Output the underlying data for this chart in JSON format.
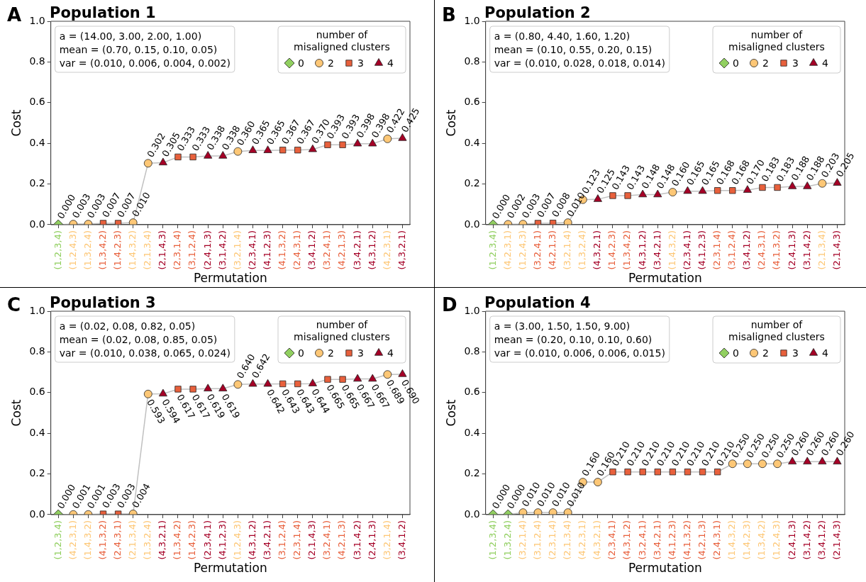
{
  "chart_data": [
    {
      "type": "scatter",
      "title": "Population 1",
      "xlabel": "Permutation",
      "ylabel": "Cost",
      "legend_title": "number of misaligned clusters",
      "legend": "top right",
      "grid": false,
      "annotations": [
        "A",
        "a = (14.00, 3.00, 2.00, 1.00)",
        "mean = (0.70, 0.15, 0.10, 0.05)",
        "var = (0.010, 0.006, 0.004, 0.002)"
      ],
      "categories": [
        "(1,2,3,4)",
        "(1,2,4,3)",
        "(1,3,2,4)",
        "(1,3,4,2)",
        "(1,4,2,3)",
        "(1,4,3,2)",
        "(2,1,3,4)",
        "(2,1,4,3)",
        "(2,3,1,4)",
        "(3,1,2,4)",
        "(2,4,1,3)",
        "(3,1,4,2)",
        "(3,2,1,4)",
        "(2,3,4,1)",
        "(4,1,2,3)",
        "(4,1,3,2)",
        "(2,4,3,1)",
        "(3,4,1,2)",
        "(3,2,4,1)",
        "(4,2,1,3)",
        "(3,4,2,1)",
        "(4,3,1,2)",
        "(4,2,3,1)",
        "(4,3,2,1)"
      ],
      "ylim": [
        0,
        1
      ],
      "yticks": [
        {
          "value": 0,
          "label": "0.0"
        },
        {
          "value": 0.2,
          "label": "0.2"
        },
        {
          "value": 0.4,
          "label": "0.4"
        },
        {
          "value": 0.6,
          "label": "0.6"
        },
        {
          "value": 0.8,
          "label": "0.8"
        },
        {
          "value": 1,
          "label": "1.0"
        }
      ],
      "series": [
        {
          "type": "line",
          "color": "#c0c0c0",
          "marker": "none",
          "values": [
            0,
            0.003,
            0.003,
            0.007,
            0.007,
            0.01,
            0.302,
            0.305,
            0.333,
            0.333,
            0.338,
            0.338,
            0.36,
            0.365,
            0.365,
            0.367,
            0.367,
            0.37,
            0.393,
            0.393,
            0.398,
            0.398,
            0.422,
            0.425
          ]
        },
        {
          "name": "0",
          "type": "scatter",
          "marker": "diamond",
          "color": "#91cf60",
          "values": [
            0,
            null,
            null,
            null,
            null,
            null,
            null,
            null,
            null,
            null,
            null,
            null,
            null,
            null,
            null,
            null,
            null,
            null,
            null,
            null,
            null,
            null,
            null,
            null
          ],
          "value_labels": [
            "0.000",
            null,
            null,
            null,
            null,
            null,
            null,
            null,
            null,
            null,
            null,
            null,
            null,
            null,
            null,
            null,
            null,
            null,
            null,
            null,
            null,
            null,
            null,
            null
          ]
        },
        {
          "name": "2",
          "type": "scatter",
          "marker": "circle",
          "color": "#fdc776",
          "values": [
            null,
            0.003,
            0.003,
            null,
            null,
            0.01,
            0.302,
            null,
            null,
            null,
            null,
            null,
            0.36,
            null,
            null,
            null,
            null,
            null,
            null,
            null,
            null,
            null,
            0.422,
            null
          ],
          "value_labels": [
            null,
            "0.003",
            "0.003",
            null,
            null,
            "0.010",
            "0.302",
            null,
            null,
            null,
            null,
            null,
            "0.360",
            null,
            null,
            null,
            null,
            null,
            null,
            null,
            null,
            null,
            "0.422",
            null
          ]
        },
        {
          "name": "3",
          "type": "scatter",
          "marker": "square",
          "color": "#e8603c",
          "values": [
            null,
            null,
            null,
            0.007,
            0.007,
            null,
            null,
            null,
            0.333,
            0.333,
            null,
            null,
            null,
            null,
            null,
            0.367,
            0.367,
            null,
            0.393,
            0.393,
            null,
            null,
            null,
            null
          ],
          "value_labels": [
            null,
            null,
            null,
            "0.007",
            "0.007",
            null,
            null,
            null,
            "0.333",
            "0.333",
            null,
            null,
            null,
            null,
            null,
            "0.367",
            "0.367",
            null,
            "0.393",
            "0.393",
            null,
            null,
            null,
            null
          ]
        },
        {
          "name": "4",
          "type": "scatter",
          "marker": "triangle",
          "color": "#a50026",
          "values": [
            null,
            null,
            null,
            null,
            null,
            null,
            null,
            0.305,
            null,
            null,
            0.338,
            0.338,
            null,
            0.365,
            0.365,
            null,
            null,
            0.37,
            null,
            null,
            0.398,
            0.398,
            null,
            0.425
          ],
          "value_labels": [
            null,
            null,
            null,
            null,
            null,
            null,
            null,
            "0.305",
            null,
            null,
            "0.338",
            "0.338",
            null,
            "0.365",
            "0.365",
            null,
            null,
            "0.370",
            null,
            null,
            "0.398",
            "0.398",
            null,
            "0.425"
          ]
        }
      ]
    },
    {
      "type": "scatter",
      "title": "Population 2",
      "xlabel": "Permutation",
      "ylabel": "Cost",
      "legend_title": "number of misaligned clusters",
      "legend": "top right",
      "grid": false,
      "annotations": [
        "B",
        "a = (0.80, 4.40, 1.60, 1.20)",
        "mean = (0.10, 0.55, 0.20, 0.15)",
        "var = (0.010, 0.028, 0.018, 0.014)"
      ],
      "categories": [
        "(1,2,3,4)",
        "(4,2,3,1)",
        "(1,2,4,3)",
        "(3,2,4,1)",
        "(4,2,1,3)",
        "(3,2,1,4)",
        "(1,3,2,4)",
        "(4,3,2,1)",
        "(1,4,2,3)",
        "(1,3,4,2)",
        "(4,3,1,2)",
        "(3,4,2,1)",
        "(1,4,3,2)",
        "(2,3,4,1)",
        "(4,1,2,3)",
        "(2,3,1,4)",
        "(3,1,2,4)",
        "(3,4,1,2)",
        "(2,4,3,1)",
        "(4,1,3,2)",
        "(2,4,1,3)",
        "(3,1,4,2)",
        "(2,1,3,4)",
        "(2,1,4,3)"
      ],
      "ylim": [
        0,
        1
      ],
      "yticks": [
        {
          "value": 0,
          "label": "0.0"
        },
        {
          "value": 0.2,
          "label": "0.2"
        },
        {
          "value": 0.4,
          "label": "0.4"
        },
        {
          "value": 0.6,
          "label": "0.6"
        },
        {
          "value": 0.8,
          "label": "0.8"
        },
        {
          "value": 1,
          "label": "1.0"
        }
      ],
      "series": [
        {
          "type": "line",
          "color": "#c0c0c0",
          "marker": "none",
          "values": [
            0,
            0.002,
            0.003,
            0.007,
            0.008,
            0.01,
            0.123,
            0.125,
            0.143,
            0.143,
            0.148,
            0.148,
            0.16,
            0.165,
            0.165,
            0.168,
            0.168,
            0.17,
            0.183,
            0.183,
            0.188,
            0.188,
            0.203,
            0.205
          ]
        },
        {
          "name": "0",
          "type": "scatter",
          "marker": "diamond",
          "color": "#91cf60",
          "values": [
            0,
            null,
            null,
            null,
            null,
            null,
            null,
            null,
            null,
            null,
            null,
            null,
            null,
            null,
            null,
            null,
            null,
            null,
            null,
            null,
            null,
            null,
            null,
            null
          ],
          "value_labels": [
            "0.000",
            null,
            null,
            null,
            null,
            null,
            null,
            null,
            null,
            null,
            null,
            null,
            null,
            null,
            null,
            null,
            null,
            null,
            null,
            null,
            null,
            null,
            null,
            null
          ]
        },
        {
          "name": "2",
          "type": "scatter",
          "marker": "circle",
          "color": "#fdc776",
          "values": [
            null,
            0.002,
            0.003,
            null,
            null,
            0.01,
            0.123,
            null,
            null,
            null,
            null,
            null,
            0.16,
            null,
            null,
            null,
            null,
            null,
            null,
            null,
            null,
            null,
            0.203,
            null
          ],
          "value_labels": [
            null,
            "0.002",
            "0.003",
            null,
            null,
            "0.010",
            "0.123",
            null,
            null,
            null,
            null,
            null,
            "0.160",
            null,
            null,
            null,
            null,
            null,
            null,
            null,
            null,
            null,
            "0.203",
            null
          ]
        },
        {
          "name": "3",
          "type": "scatter",
          "marker": "square",
          "color": "#e8603c",
          "values": [
            null,
            null,
            null,
            0.007,
            0.008,
            null,
            null,
            null,
            0.143,
            0.143,
            null,
            null,
            null,
            null,
            null,
            0.168,
            0.168,
            null,
            0.183,
            0.183,
            null,
            null,
            null,
            null
          ],
          "value_labels": [
            null,
            null,
            null,
            "0.007",
            "0.008",
            null,
            null,
            null,
            "0.143",
            "0.143",
            null,
            null,
            null,
            null,
            null,
            "0.168",
            "0.168",
            null,
            "0.183",
            "0.183",
            null,
            null,
            null,
            null
          ]
        },
        {
          "name": "4",
          "type": "scatter",
          "marker": "triangle",
          "color": "#a50026",
          "values": [
            null,
            null,
            null,
            null,
            null,
            null,
            null,
            0.125,
            null,
            null,
            0.148,
            0.148,
            null,
            0.165,
            0.165,
            null,
            null,
            0.17,
            null,
            null,
            0.188,
            0.188,
            null,
            0.205
          ],
          "value_labels": [
            null,
            null,
            null,
            null,
            null,
            null,
            null,
            "0.125",
            null,
            null,
            "0.148",
            "0.148",
            null,
            "0.165",
            "0.165",
            null,
            null,
            "0.170",
            null,
            null,
            "0.188",
            "0.188",
            null,
            "0.205"
          ]
        }
      ]
    },
    {
      "type": "scatter",
      "title": "Population 3",
      "xlabel": "Permutation",
      "ylabel": "Cost",
      "legend_title": "number of misaligned clusters",
      "legend": "top right",
      "grid": false,
      "annotations": [
        "C",
        "a = (0.02, 0.08, 0.82, 0.05)",
        "mean = (0.02, 0.08, 0.85, 0.05)",
        "var = (0.010, 0.038, 0.065, 0.024)"
      ],
      "categories": [
        "(1,2,3,4)",
        "(4,2,3,1)",
        "(1,4,3,2)",
        "(4,1,3,2)",
        "(2,4,3,1)",
        "(2,1,3,4)",
        "(1,3,2,4)",
        "(4,3,2,1)",
        "(1,3,4,2)",
        "(1,4,2,3)",
        "(2,3,4,1)",
        "(4,1,2,3)",
        "(1,2,4,3)",
        "(4,3,1,2)",
        "(3,4,2,1)",
        "(3,1,2,4)",
        "(2,3,1,4)",
        "(2,1,4,3)",
        "(3,2,4,1)",
        "(4,2,1,3)",
        "(3,1,4,2)",
        "(2,4,1,3)",
        "(3,2,1,4)",
        "(3,4,1,2)"
      ],
      "ylim": [
        0,
        1
      ],
      "yticks": [
        {
          "value": 0,
          "label": "0.0"
        },
        {
          "value": 0.2,
          "label": "0.2"
        },
        {
          "value": 0.4,
          "label": "0.4"
        },
        {
          "value": 0.6,
          "label": "0.6"
        },
        {
          "value": 0.8,
          "label": "0.8"
        },
        {
          "value": 1,
          "label": "1.0"
        }
      ],
      "series": [
        {
          "type": "line",
          "color": "#c0c0c0",
          "marker": "none",
          "values": [
            0,
            0.001,
            0.001,
            0.003,
            0.003,
            0.004,
            0.593,
            0.594,
            0.617,
            0.617,
            0.619,
            0.619,
            0.64,
            0.642,
            0.642,
            0.643,
            0.643,
            0.644,
            0.665,
            0.665,
            0.667,
            0.667,
            0.689,
            0.69
          ]
        },
        {
          "name": "0",
          "type": "scatter",
          "marker": "diamond",
          "color": "#91cf60",
          "values": [
            0,
            null,
            null,
            null,
            null,
            null,
            null,
            null,
            null,
            null,
            null,
            null,
            null,
            null,
            null,
            null,
            null,
            null,
            null,
            null,
            null,
            null,
            null,
            null
          ],
          "value_labels": [
            "0.000",
            null,
            null,
            null,
            null,
            null,
            null,
            null,
            null,
            null,
            null,
            null,
            null,
            null,
            null,
            null,
            null,
            null,
            null,
            null,
            null,
            null,
            null,
            null
          ]
        },
        {
          "name": "2",
          "type": "scatter",
          "marker": "circle",
          "color": "#fdc776",
          "values": [
            null,
            0.001,
            0.001,
            null,
            null,
            0.004,
            0.593,
            null,
            null,
            null,
            null,
            null,
            0.64,
            null,
            null,
            null,
            null,
            null,
            null,
            null,
            null,
            null,
            0.689,
            null
          ],
          "value_labels": [
            null,
            "0.001",
            "0.001",
            null,
            null,
            "0.004",
            "0.593",
            null,
            null,
            null,
            null,
            null,
            "0.640",
            null,
            null,
            null,
            null,
            null,
            null,
            null,
            null,
            null,
            "0.689",
            null
          ]
        },
        {
          "name": "3",
          "type": "scatter",
          "marker": "square",
          "color": "#e8603c",
          "values": [
            null,
            null,
            null,
            0.003,
            0.003,
            null,
            null,
            null,
            0.617,
            0.617,
            null,
            null,
            null,
            null,
            null,
            0.643,
            0.643,
            null,
            0.665,
            0.665,
            null,
            null,
            null,
            null
          ],
          "value_labels": [
            null,
            null,
            null,
            "0.003",
            "0.003",
            null,
            null,
            null,
            "0.617",
            "0.617",
            null,
            null,
            null,
            null,
            null,
            "0.643",
            "0.643",
            null,
            "0.665",
            "0.665",
            null,
            null,
            null,
            null
          ]
        },
        {
          "name": "4",
          "type": "scatter",
          "marker": "triangle",
          "color": "#a50026",
          "values": [
            null,
            null,
            null,
            null,
            null,
            null,
            null,
            0.594,
            null,
            null,
            0.619,
            0.619,
            null,
            0.642,
            0.642,
            null,
            null,
            0.644,
            null,
            null,
            0.667,
            0.667,
            null,
            0.69
          ],
          "value_labels": [
            null,
            null,
            null,
            null,
            null,
            null,
            null,
            "0.594",
            null,
            null,
            "0.619",
            "0.619",
            null,
            "0.642",
            "0.642",
            null,
            null,
            "0.644",
            null,
            null,
            "0.667",
            "0.667",
            null,
            "0.690"
          ]
        }
      ]
    },
    {
      "type": "scatter",
      "title": "Population 4",
      "xlabel": "Permutation",
      "ylabel": "Cost",
      "legend_title": "number of misaligned clusters",
      "legend": "top right",
      "grid": false,
      "annotations": [
        "D",
        "a = (3.00, 1.50, 1.50, 9.00)",
        "mean = (0.20, 0.10, 0.10, 0.60)",
        "var = (0.010, 0.006, 0.006, 0.015)"
      ],
      "categories": [
        "(1,2,3,4)",
        "(1,3,2,4)",
        "(3,2,1,4)",
        "(3,1,2,4)",
        "(2,3,1,4)",
        "(2,1,3,4)",
        "(4,2,3,1)",
        "(4,3,2,1)",
        "(2,3,4,1)",
        "(4,3,1,2)",
        "(3,2,4,1)",
        "(3,4,2,1)",
        "(4,1,2,3)",
        "(4,1,3,2)",
        "(4,2,1,3)",
        "(2,4,3,1)",
        "(1,4,3,2)",
        "(1,4,2,3)",
        "(1,3,4,2)",
        "(1,2,4,3)",
        "(2,4,1,3)",
        "(3,1,4,2)",
        "(3,4,1,2)",
        "(2,1,4,3)"
      ],
      "ylim": [
        0,
        1
      ],
      "yticks": [
        {
          "value": 0,
          "label": "0.0"
        },
        {
          "value": 0.2,
          "label": "0.2"
        },
        {
          "value": 0.4,
          "label": "0.4"
        },
        {
          "value": 0.6,
          "label": "0.6"
        },
        {
          "value": 0.8,
          "label": "0.8"
        },
        {
          "value": 1,
          "label": "1.0"
        }
      ],
      "series": [
        {
          "type": "line",
          "color": "#c0c0c0",
          "marker": "none",
          "values": [
            0,
            0,
            0.01,
            0.01,
            0.01,
            0.01,
            0.16,
            0.16,
            0.21,
            0.21,
            0.21,
            0.21,
            0.21,
            0.21,
            0.21,
            0.21,
            0.25,
            0.25,
            0.25,
            0.25,
            0.26,
            0.26,
            0.26,
            0.26
          ]
        },
        {
          "name": "0",
          "type": "scatter",
          "marker": "diamond",
          "color": "#91cf60",
          "values": [
            0,
            0,
            null,
            null,
            null,
            null,
            null,
            null,
            null,
            null,
            null,
            null,
            null,
            null,
            null,
            null,
            null,
            null,
            null,
            null,
            null,
            null,
            null,
            null
          ],
          "value_labels": [
            "0.000",
            "0.000",
            null,
            null,
            null,
            null,
            null,
            null,
            null,
            null,
            null,
            null,
            null,
            null,
            null,
            null,
            null,
            null,
            null,
            null,
            null,
            null,
            null,
            null
          ]
        },
        {
          "name": "2",
          "type": "scatter",
          "marker": "circle",
          "color": "#fdc776",
          "values": [
            null,
            null,
            0.01,
            0.01,
            0.01,
            0.01,
            0.16,
            0.16,
            null,
            null,
            null,
            null,
            null,
            null,
            null,
            null,
            0.25,
            0.25,
            0.25,
            0.25,
            null,
            null,
            null,
            null
          ],
          "value_labels": [
            null,
            null,
            "0.010",
            "0.010",
            "0.010",
            "0.010",
            "0.160",
            "0.160",
            null,
            null,
            null,
            null,
            null,
            null,
            null,
            null,
            "0.250",
            "0.250",
            "0.250",
            "0.250",
            null,
            null,
            null,
            null
          ]
        },
        {
          "name": "3",
          "type": "scatter",
          "marker": "square",
          "color": "#e8603c",
          "values": [
            null,
            null,
            null,
            null,
            null,
            null,
            null,
            null,
            0.21,
            0.21,
            0.21,
            0.21,
            0.21,
            0.21,
            0.21,
            0.21,
            null,
            null,
            null,
            null,
            null,
            null,
            null,
            null
          ],
          "value_labels": [
            null,
            null,
            null,
            null,
            null,
            null,
            null,
            null,
            "0.210",
            "0.210",
            "0.210",
            "0.210",
            "0.210",
            "0.210",
            "0.210",
            "0.210",
            null,
            null,
            null,
            null,
            null,
            null,
            null,
            null
          ]
        },
        {
          "name": "4",
          "type": "scatter",
          "marker": "triangle",
          "color": "#a50026",
          "values": [
            null,
            null,
            null,
            null,
            null,
            null,
            null,
            null,
            null,
            null,
            null,
            null,
            null,
            null,
            null,
            null,
            null,
            null,
            null,
            null,
            0.26,
            0.26,
            0.26,
            0.26
          ],
          "value_labels": [
            null,
            null,
            null,
            null,
            null,
            null,
            null,
            null,
            null,
            null,
            null,
            null,
            null,
            null,
            null,
            null,
            null,
            null,
            null,
            null,
            "0.260",
            "0.260",
            "0.260",
            "0.260"
          ]
        }
      ]
    }
  ]
}
